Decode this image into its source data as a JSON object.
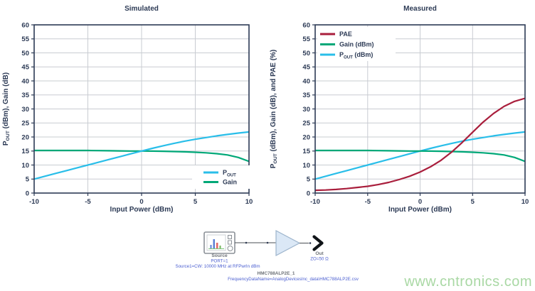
{
  "watermark": {
    "text": "www.cntronics.com",
    "color": "#a9d8a4"
  },
  "style": {
    "axis_color": "#2c3a55",
    "grid_color": "#c9ccd2",
    "pout_color": "#29bee9",
    "gain_color": "#00a878",
    "pae_color": "#a91e3c"
  },
  "chart_data": [
    {
      "type": "line",
      "title": "Simulated",
      "xlabel": "Input Power (dBm)",
      "ylabel_segments": [
        {
          "t": "P"
        },
        {
          "t": "OUT",
          "sub": true
        },
        {
          "t": " (dBm), Gain (dB)"
        }
      ],
      "xlim": [
        -10,
        10
      ],
      "ylim": [
        0,
        60
      ],
      "xticks": [
        -10,
        -5,
        0,
        5,
        10
      ],
      "ytick_step": 5,
      "grid": true,
      "legend_position": "bottom-right",
      "x": [
        -10,
        -9,
        -8,
        -7,
        -6,
        -5,
        -4,
        -3,
        -2,
        -1,
        0,
        1,
        2,
        3,
        4,
        5,
        6,
        7,
        8,
        9,
        10
      ],
      "series": [
        {
          "id": "pout",
          "label_segments": [
            {
              "t": "P"
            },
            {
              "t": "OUT",
              "sub": true
            }
          ],
          "color": "#29bee9",
          "values": [
            5,
            6,
            7,
            8,
            9,
            10,
            11,
            12,
            13,
            14,
            15,
            15.95,
            16.85,
            17.7,
            18.5,
            19.2,
            19.8,
            20.4,
            20.9,
            21.4,
            21.8
          ]
        },
        {
          "id": "gain",
          "label_segments": [
            {
              "t": "Gain"
            }
          ],
          "color": "#00a878",
          "values": [
            15.2,
            15.2,
            15.2,
            15.2,
            15.2,
            15.2,
            15.15,
            15.1,
            15.05,
            15,
            15,
            14.95,
            14.9,
            14.8,
            14.7,
            14.55,
            14.35,
            14.05,
            13.6,
            12.7,
            11.3
          ]
        }
      ]
    },
    {
      "type": "line",
      "title": "Measured",
      "xlabel": "Input Power (dBm)",
      "ylabel_segments": [
        {
          "t": "P"
        },
        {
          "t": "OUT",
          "sub": true
        },
        {
          "t": " (dBm), Gain (dB), and PAE (%)"
        }
      ],
      "xlim": [
        -10,
        10
      ],
      "ylim": [
        0,
        60
      ],
      "xticks": [
        -10,
        -5,
        0,
        5,
        10
      ],
      "ytick_step": 5,
      "grid": true,
      "legend_position": "top-left",
      "x": [
        -10,
        -9,
        -8,
        -7,
        -6,
        -5,
        -4,
        -3,
        -2,
        -1,
        0,
        1,
        2,
        3,
        4,
        5,
        6,
        7,
        8,
        9,
        10
      ],
      "series": [
        {
          "id": "pae",
          "label_segments": [
            {
              "t": "PAE"
            }
          ],
          "color": "#a91e3c",
          "values": [
            1,
            1.1,
            1.3,
            1.6,
            2,
            2.4,
            3,
            3.8,
            4.8,
            6,
            7.5,
            9.4,
            11.7,
            14.6,
            18,
            21.7,
            25.3,
            28.4,
            30.9,
            32.7,
            33.8
          ]
        },
        {
          "id": "gain",
          "label_segments": [
            {
              "t": "Gain (dBm)"
            }
          ],
          "color": "#00a878",
          "values": [
            15.2,
            15.2,
            15.2,
            15.2,
            15.2,
            15.2,
            15.15,
            15.1,
            15.05,
            15,
            15,
            14.95,
            14.9,
            14.8,
            14.7,
            14.55,
            14.35,
            14.05,
            13.6,
            12.7,
            11.3
          ]
        },
        {
          "id": "pout",
          "label_segments": [
            {
              "t": "P"
            },
            {
              "t": "OUT",
              "sub": true
            },
            {
              "t": " (dBm)"
            }
          ],
          "color": "#29bee9",
          "values": [
            5,
            6,
            7,
            8,
            9,
            10,
            11,
            12,
            13,
            14,
            15,
            15.95,
            16.85,
            17.7,
            18.5,
            19.2,
            19.8,
            20.4,
            20.9,
            21.4,
            21.8
          ]
        }
      ]
    }
  ],
  "schematic": {
    "source": {
      "label": "Source",
      "port_text": "PORT=1",
      "settings_text": "Source1=CW: 10000 MHz at RFPwrIn dBm"
    },
    "amplifier": {
      "name": "HMC788ALP2E_1",
      "data_text": "FrequencyDataName=AnalogDevicesInc_data\\HMC788ALP2E.csv"
    },
    "output": {
      "label": "Out",
      "impedance_text": "ZO=50 Ω"
    }
  }
}
